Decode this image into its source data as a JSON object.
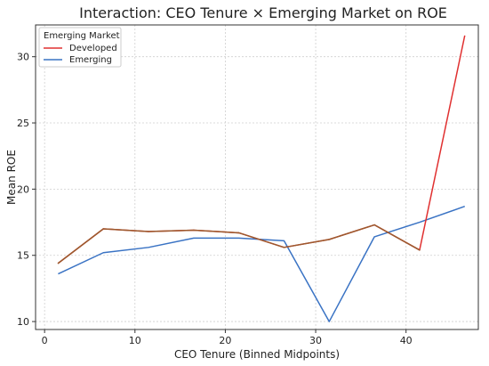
{
  "chart_data": {
    "type": "line",
    "title": "Interaction: CEO Tenure × Emerging Market on ROE",
    "xlabel": "CEO Tenure (Binned Midpoints)",
    "ylabel": "Mean ROE",
    "xlim": [
      -1,
      48
    ],
    "ylim": [
      9.4,
      32.4
    ],
    "xticks": [
      0,
      10,
      20,
      30,
      40
    ],
    "yticks": [
      10,
      15,
      20,
      25,
      30
    ],
    "grid": true,
    "legend": {
      "title": "Emerging Market",
      "position": "top-left"
    },
    "series": [
      {
        "name": "Developed",
        "color": "#e03030",
        "x": [
          1.5,
          6.5,
          11.5,
          16.5,
          21.5,
          26.5,
          31.5,
          36.5,
          41.5,
          46.5
        ],
        "y": [
          14.4,
          17.0,
          16.8,
          16.9,
          16.7,
          15.6,
          16.2,
          17.3,
          15.4,
          31.6
        ]
      },
      {
        "name": "Emerging",
        "color": "#3a73c4",
        "x": [
          1.5,
          6.5,
          11.5,
          16.5,
          21.5,
          26.5,
          31.5,
          36.5,
          41.5,
          46.5
        ],
        "y": [
          13.6,
          15.2,
          15.6,
          16.3,
          16.3,
          16.1,
          10.0,
          16.4,
          17.5,
          18.7
        ]
      }
    ],
    "overlap_color": "#9b5a2e"
  }
}
